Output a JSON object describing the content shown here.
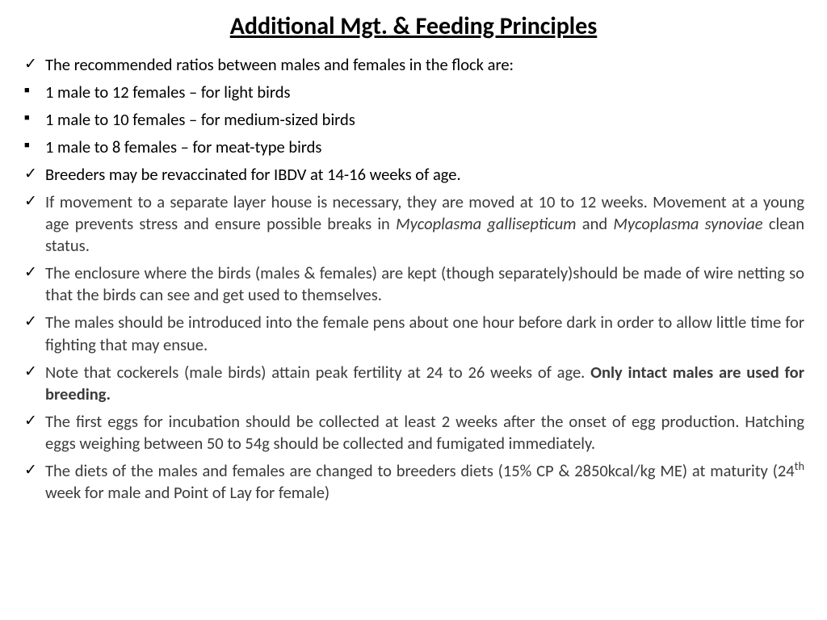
{
  "title": "Additional Mgt. & Feeding Principles",
  "items": [
    {
      "bullet": "check",
      "justify": false,
      "html": "The recommended ratios between males and females in the flock are:"
    },
    {
      "bullet": "square",
      "justify": false,
      "html": "1 male to 12 females – for light birds"
    },
    {
      "bullet": "square",
      "justify": false,
      "html": "1 male to 10 females – for medium-sized birds"
    },
    {
      "bullet": "square",
      "justify": false,
      "html": "1 male to 8 females – for meat-type birds"
    },
    {
      "bullet": "check",
      "justify": false,
      "html": "Breeders may be revaccinated for IBDV at 14-16 weeks of age."
    },
    {
      "bullet": "check",
      "justify": true,
      "html": "If movement to a separate layer house is necessary,  they are moved at 10 to 12 weeks. Movement at a young age prevents stress and ensure possible breaks in <span class=\"italic\">Mycoplasma gallisepticum</span> and <span class=\"italic\">Mycoplasma synoviae</span> clean status."
    },
    {
      "bullet": "check",
      "justify": true,
      "html": "The enclosure where the birds (males & females) are kept (though separately)should be made of wire netting so that the birds can see and get used to themselves."
    },
    {
      "bullet": "check",
      "justify": true,
      "html": "The males should be introduced into the female pens about one hour before dark in order to allow little time for fighting that may ensue."
    },
    {
      "bullet": "check",
      "justify": true,
      "html": "Note that cockerels (male birds) attain peak fertility at 24 to 26 weeks of age.  <span class=\"bold\">Only intact males are used for breeding.</span>"
    },
    {
      "bullet": "check",
      "justify": true,
      "html": "The first eggs for incubation should be collected at least 2 weeks after the onset of egg production. Hatching eggs weighing between 50 to 54g should be collected and fumigated immediately."
    },
    {
      "bullet": "check",
      "justify": true,
      "html": "The diets of the males and females are changed to breeders diets (15% CP & 2850kcal/kg ME) at maturity (24<sup>th</sup> week for male and Point of Lay for female)"
    }
  ],
  "bullets": {
    "check": "✓",
    "square": "■"
  },
  "colors": {
    "background": "#ffffff",
    "title": "#000000",
    "body": "#3b3b3b",
    "dark": "#000000"
  },
  "fontsize": {
    "title": 30,
    "body": 20.5
  }
}
